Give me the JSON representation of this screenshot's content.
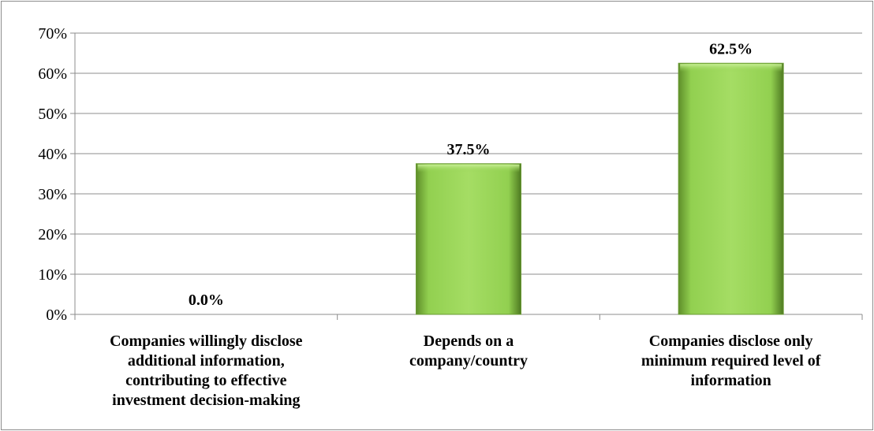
{
  "chart_data": {
    "type": "bar",
    "title": "",
    "xlabel": "",
    "ylabel": "",
    "ylim": [
      0,
      70
    ],
    "y_ticks": [
      "0%",
      "10%",
      "20%",
      "30%",
      "40%",
      "50%",
      "60%",
      "70%"
    ],
    "grid": true,
    "legend": "none",
    "categories": [
      [
        "Companies willingly disclose",
        "additional information,",
        "contributing to effective",
        "investment decision-making"
      ],
      [
        "Depends on a",
        "company/country"
      ],
      [
        "Companies disclose only",
        "minimum required level of",
        "information"
      ]
    ],
    "values": [
      0.0,
      37.5,
      62.5
    ],
    "data_labels": [
      "0.0%",
      "37.5%",
      "62.5%"
    ],
    "colors": {
      "bar_fill": "#92d050",
      "bar_light": "#b6e57a",
      "bar_dark": "#5f8f2a",
      "gridline": "#8c8c8c",
      "axis": "#8c8c8c"
    }
  }
}
